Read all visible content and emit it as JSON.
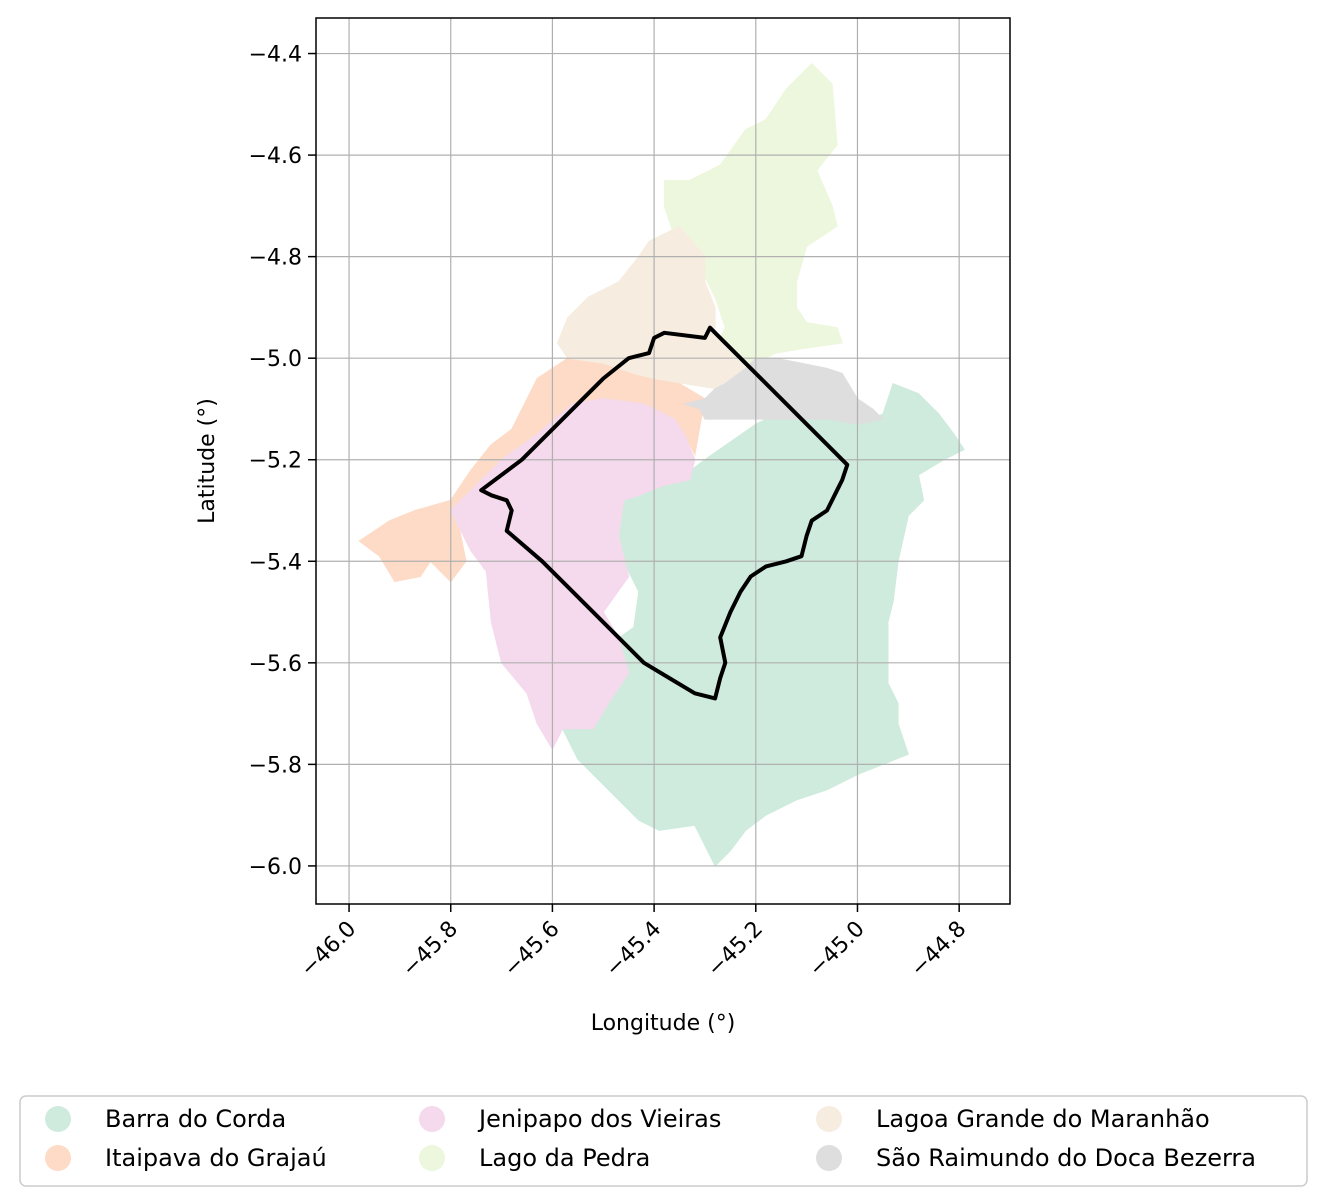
{
  "chart_data": {
    "type": "map",
    "xlabel": "Longitude (°)",
    "ylabel": "Latitude (°)",
    "xlim": [
      -46.065,
      -44.7
    ],
    "ylim": [
      -6.075,
      -4.33
    ],
    "x_ticks": [
      {
        "value": -46.0,
        "label": "−46.0"
      },
      {
        "value": -45.8,
        "label": "−45.8"
      },
      {
        "value": -45.6,
        "label": "−45.6"
      },
      {
        "value": -45.4,
        "label": "−45.4"
      },
      {
        "value": -45.2,
        "label": "−45.2"
      },
      {
        "value": -45.0,
        "label": "−45.0"
      },
      {
        "value": -44.8,
        "label": "−44.8"
      }
    ],
    "y_ticks": [
      {
        "value": -4.4,
        "label": "−4.4"
      },
      {
        "value": -4.6,
        "label": "−4.6"
      },
      {
        "value": -4.8,
        "label": "−4.8"
      },
      {
        "value": -5.0,
        "label": "−5.0"
      },
      {
        "value": -5.2,
        "label": "−5.2"
      },
      {
        "value": -5.4,
        "label": "−5.4"
      },
      {
        "value": -5.6,
        "label": "−5.6"
      },
      {
        "value": -5.8,
        "label": "−5.8"
      },
      {
        "value": -6.0,
        "label": "−6.0"
      }
    ],
    "grid": true,
    "legend_placement": "bottom",
    "regions": [
      {
        "name": "Barra do Corda",
        "color": "#cfebdd",
        "coords": [
          [
            -45.18,
            -5.12
          ],
          [
            -45.06,
            -5.12
          ],
          [
            -45.0,
            -5.13
          ],
          [
            -44.95,
            -5.11
          ],
          [
            -44.93,
            -5.05
          ],
          [
            -44.88,
            -5.07
          ],
          [
            -44.84,
            -5.11
          ],
          [
            -44.81,
            -5.15
          ],
          [
            -44.79,
            -5.18
          ],
          [
            -44.83,
            -5.2
          ],
          [
            -44.88,
            -5.23
          ],
          [
            -44.87,
            -5.28
          ],
          [
            -44.9,
            -5.31
          ],
          [
            -44.92,
            -5.4
          ],
          [
            -44.93,
            -5.48
          ],
          [
            -44.94,
            -5.52
          ],
          [
            -44.94,
            -5.6
          ],
          [
            -44.94,
            -5.64
          ],
          [
            -44.92,
            -5.68
          ],
          [
            -44.92,
            -5.72
          ],
          [
            -44.9,
            -5.78
          ],
          [
            -44.95,
            -5.8
          ],
          [
            -45.0,
            -5.82
          ],
          [
            -45.06,
            -5.85
          ],
          [
            -45.12,
            -5.87
          ],
          [
            -45.18,
            -5.9
          ],
          [
            -45.22,
            -5.93
          ],
          [
            -45.25,
            -5.97
          ],
          [
            -45.28,
            -6.0
          ],
          [
            -45.3,
            -5.96
          ],
          [
            -45.32,
            -5.92
          ],
          [
            -45.39,
            -5.93
          ],
          [
            -45.43,
            -5.91
          ],
          [
            -45.5,
            -5.84
          ],
          [
            -45.55,
            -5.79
          ],
          [
            -45.58,
            -5.73
          ],
          [
            -45.56,
            -5.68
          ],
          [
            -45.51,
            -5.58
          ],
          [
            -45.44,
            -5.53
          ],
          [
            -45.43,
            -5.46
          ],
          [
            -45.46,
            -5.4
          ],
          [
            -45.5,
            -5.33
          ],
          [
            -45.47,
            -5.27
          ],
          [
            -45.44,
            -5.26
          ],
          [
            -45.38,
            -5.25
          ],
          [
            -45.34,
            -5.23
          ],
          [
            -45.3,
            -5.2
          ],
          [
            -45.2,
            -5.13
          ]
        ]
      },
      {
        "name": "Itaipava do Grajaú",
        "color": "#fddbc6",
        "coords": [
          [
            -45.42,
            -5.0
          ],
          [
            -45.57,
            -5.0
          ],
          [
            -45.63,
            -5.04
          ],
          [
            -45.65,
            -5.08
          ],
          [
            -45.68,
            -5.14
          ],
          [
            -45.72,
            -5.17
          ],
          [
            -45.76,
            -5.22
          ],
          [
            -45.8,
            -5.28
          ],
          [
            -45.87,
            -5.3
          ],
          [
            -45.92,
            -5.32
          ],
          [
            -45.98,
            -5.36
          ],
          [
            -45.94,
            -5.39
          ],
          [
            -45.91,
            -5.44
          ],
          [
            -45.86,
            -5.43
          ],
          [
            -45.84,
            -5.4
          ],
          [
            -45.8,
            -5.44
          ],
          [
            -45.77,
            -5.4
          ],
          [
            -45.79,
            -5.3
          ],
          [
            -45.74,
            -5.26
          ],
          [
            -45.7,
            -5.2
          ],
          [
            -45.6,
            -5.13
          ],
          [
            -45.55,
            -5.09
          ],
          [
            -45.5,
            -5.08
          ],
          [
            -45.44,
            -5.09
          ],
          [
            -45.38,
            -5.11
          ],
          [
            -45.34,
            -5.15
          ],
          [
            -45.32,
            -5.19
          ],
          [
            -45.3,
            -5.08
          ],
          [
            -45.35,
            -5.05
          ],
          [
            -45.4,
            -5.03
          ]
        ]
      },
      {
        "name": "Jenipapo dos Vieiras",
        "color": "#f5d9ec",
        "coords": [
          [
            -45.8,
            -5.3
          ],
          [
            -45.7,
            -5.2
          ],
          [
            -45.63,
            -5.15
          ],
          [
            -45.56,
            -5.09
          ],
          [
            -45.5,
            -5.08
          ],
          [
            -45.42,
            -5.09
          ],
          [
            -45.36,
            -5.12
          ],
          [
            -45.34,
            -5.15
          ],
          [
            -45.32,
            -5.2
          ],
          [
            -45.33,
            -5.24
          ],
          [
            -45.38,
            -5.25
          ],
          [
            -45.43,
            -5.27
          ],
          [
            -45.46,
            -5.28
          ],
          [
            -45.47,
            -5.35
          ],
          [
            -45.45,
            -5.43
          ],
          [
            -45.5,
            -5.5
          ],
          [
            -45.47,
            -5.55
          ],
          [
            -45.45,
            -5.62
          ],
          [
            -45.49,
            -5.68
          ],
          [
            -45.52,
            -5.73
          ],
          [
            -45.58,
            -5.73
          ],
          [
            -45.6,
            -5.77
          ],
          [
            -45.63,
            -5.72
          ],
          [
            -45.65,
            -5.66
          ],
          [
            -45.7,
            -5.6
          ],
          [
            -45.72,
            -5.52
          ],
          [
            -45.73,
            -5.42
          ],
          [
            -45.76,
            -5.38
          ]
        ]
      },
      {
        "name": "Lago da Pedra",
        "color": "#edf7dd",
        "coords": [
          [
            -45.09,
            -4.42
          ],
          [
            -45.05,
            -4.46
          ],
          [
            -45.04,
            -4.58
          ],
          [
            -45.08,
            -4.63
          ],
          [
            -45.05,
            -4.7
          ],
          [
            -45.04,
            -4.74
          ],
          [
            -45.1,
            -4.78
          ],
          [
            -45.12,
            -4.85
          ],
          [
            -45.12,
            -4.9
          ],
          [
            -45.1,
            -4.93
          ],
          [
            -45.04,
            -4.94
          ],
          [
            -45.03,
            -4.97
          ],
          [
            -45.1,
            -4.98
          ],
          [
            -45.16,
            -4.99
          ],
          [
            -45.2,
            -5.01
          ],
          [
            -45.24,
            -5.03
          ],
          [
            -45.27,
            -5.03
          ],
          [
            -45.28,
            -4.98
          ],
          [
            -45.26,
            -4.94
          ],
          [
            -45.28,
            -4.88
          ],
          [
            -45.3,
            -4.84
          ],
          [
            -45.32,
            -4.8
          ],
          [
            -45.36,
            -4.76
          ],
          [
            -45.38,
            -4.7
          ],
          [
            -45.38,
            -4.65
          ],
          [
            -45.33,
            -4.65
          ],
          [
            -45.27,
            -4.62
          ],
          [
            -45.22,
            -4.55
          ],
          [
            -45.18,
            -4.53
          ],
          [
            -45.14,
            -4.47
          ]
        ]
      },
      {
        "name": "Lagoa Grande do Maranhão",
        "color": "#f6ece0",
        "coords": [
          [
            -45.35,
            -4.74
          ],
          [
            -45.41,
            -4.77
          ],
          [
            -45.43,
            -4.8
          ],
          [
            -45.47,
            -4.85
          ],
          [
            -45.53,
            -4.88
          ],
          [
            -45.57,
            -4.92
          ],
          [
            -45.59,
            -4.97
          ],
          [
            -45.57,
            -5.0
          ],
          [
            -45.5,
            -5.01
          ],
          [
            -45.44,
            -5.03
          ],
          [
            -45.4,
            -5.04
          ],
          [
            -45.34,
            -5.05
          ],
          [
            -45.28,
            -5.06
          ],
          [
            -45.25,
            -5.05
          ],
          [
            -45.22,
            -5.02
          ],
          [
            -45.26,
            -4.98
          ],
          [
            -45.28,
            -4.95
          ],
          [
            -45.28,
            -4.9
          ],
          [
            -45.3,
            -4.85
          ],
          [
            -45.3,
            -4.8
          ]
        ]
      },
      {
        "name": "São Raimundo do Doca Bezerra",
        "color": "#dedede",
        "coords": [
          [
            -45.22,
            -5.02
          ],
          [
            -45.2,
            -5.0
          ],
          [
            -45.16,
            -5.0
          ],
          [
            -45.11,
            -5.01
          ],
          [
            -45.06,
            -5.02
          ],
          [
            -45.03,
            -5.03
          ],
          [
            -45.0,
            -5.08
          ],
          [
            -44.97,
            -5.1
          ],
          [
            -44.95,
            -5.12
          ],
          [
            -45.0,
            -5.13
          ],
          [
            -45.06,
            -5.12
          ],
          [
            -45.12,
            -5.12
          ],
          [
            -45.2,
            -5.12
          ],
          [
            -45.25,
            -5.12
          ],
          [
            -45.3,
            -5.12
          ],
          [
            -45.31,
            -5.1
          ],
          [
            -45.34,
            -5.09
          ],
          [
            -45.3,
            -5.08
          ],
          [
            -45.28,
            -5.06
          ],
          [
            -45.26,
            -5.05
          ]
        ]
      }
    ],
    "outline": {
      "color": "#000000",
      "coords": [
        [
          -45.38,
          -4.95
        ],
        [
          -45.3,
          -4.96
        ],
        [
          -45.29,
          -4.94
        ],
        [
          -45.27,
          -4.96
        ],
        [
          -45.2,
          -5.03
        ],
        [
          -45.11,
          -5.12
        ],
        [
          -45.02,
          -5.21
        ],
        [
          -45.03,
          -5.24
        ],
        [
          -45.04,
          -5.26
        ],
        [
          -45.06,
          -5.3
        ],
        [
          -45.09,
          -5.32
        ],
        [
          -45.1,
          -5.35
        ],
        [
          -45.11,
          -5.39
        ],
        [
          -45.14,
          -5.4
        ],
        [
          -45.18,
          -5.41
        ],
        [
          -45.21,
          -5.43
        ],
        [
          -45.23,
          -5.46
        ],
        [
          -45.25,
          -5.5
        ],
        [
          -45.27,
          -5.55
        ],
        [
          -45.26,
          -5.6
        ],
        [
          -45.27,
          -5.63
        ],
        [
          -45.28,
          -5.67
        ],
        [
          -45.32,
          -5.66
        ],
        [
          -45.37,
          -5.63
        ],
        [
          -45.42,
          -5.6
        ],
        [
          -45.52,
          -5.5
        ],
        [
          -45.62,
          -5.4
        ],
        [
          -45.69,
          -5.34
        ],
        [
          -45.68,
          -5.3
        ],
        [
          -45.69,
          -5.28
        ],
        [
          -45.72,
          -5.27
        ],
        [
          -45.74,
          -5.26
        ],
        [
          -45.66,
          -5.2
        ],
        [
          -45.55,
          -5.09
        ],
        [
          -45.5,
          -5.04
        ],
        [
          -45.45,
          -5.0
        ],
        [
          -45.41,
          -4.99
        ],
        [
          -45.4,
          -4.96
        ]
      ]
    },
    "legend": [
      {
        "label": "Barra do Corda",
        "color": "#cfebdd"
      },
      {
        "label": "Itaipava do Grajaú",
        "color": "#fddbc6"
      },
      {
        "label": "Jenipapo dos Vieiras",
        "color": "#f5d9ec"
      },
      {
        "label": "Lago da Pedra",
        "color": "#edf7dd"
      },
      {
        "label": "Lagoa Grande do Maranhão",
        "color": "#f6ece0"
      },
      {
        "label": "São Raimundo do Doca Bezerra",
        "color": "#dedede"
      }
    ]
  }
}
